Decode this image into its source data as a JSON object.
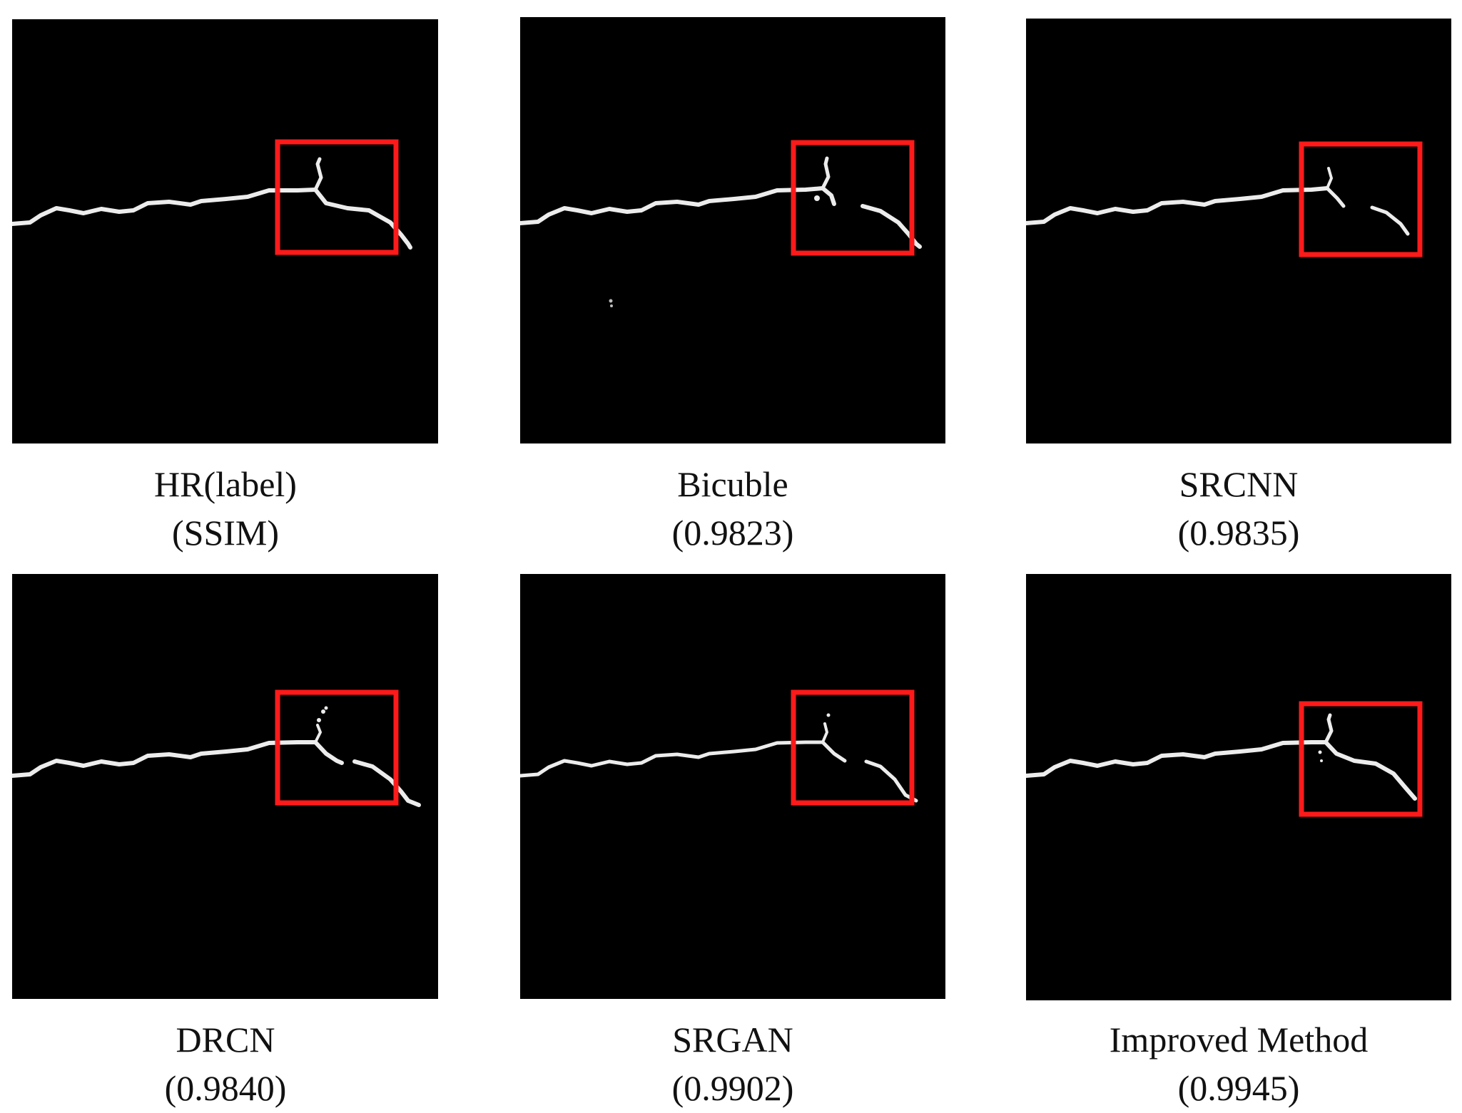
{
  "colors": {
    "background": "#ffffff",
    "panel": "#000000",
    "crack": "#ececec",
    "highlight_box": "#ff1a1a"
  },
  "panels": [
    {
      "title": "HR(label)",
      "value": "(SSIM)"
    },
    {
      "title": "Bicuble",
      "value": "(0.9823)"
    },
    {
      "title": "SRCNN",
      "value": "(0.9835)"
    },
    {
      "title": "DRCN",
      "value": "(0.9840)"
    },
    {
      "title": "SRGAN",
      "value": "(0.9902)"
    },
    {
      "title": "Improved Method",
      "value": "(0.9945)"
    }
  ]
}
